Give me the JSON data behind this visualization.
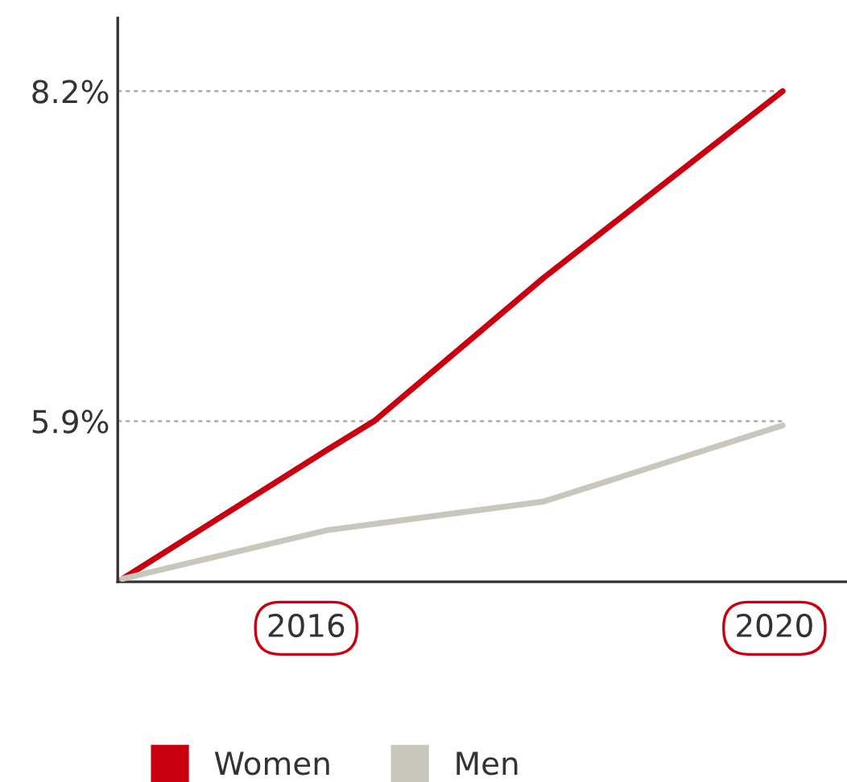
{
  "chart_data": {
    "type": "line",
    "xlim": [
      2014.39,
      2020.62
    ],
    "xticks": [
      2016,
      2020
    ],
    "ylim": [
      4.78,
      8.71
    ],
    "yticks": [
      {
        "value": 5.9,
        "label": "5.9%"
      },
      {
        "value": 8.2,
        "label": "8.2%"
      }
    ],
    "grid": "y",
    "legend": "bottom",
    "marker": "none",
    "line_style": "solid",
    "series": [
      {
        "name": "Women",
        "color": "#c8000f",
        "x": [
          2014.43,
          2016.18,
          2016.58,
          2018.03,
          2020.07
        ],
        "values": [
          4.8,
          5.7,
          5.9,
          6.9,
          8.2
        ]
      },
      {
        "name": "Men",
        "color": "#c9c7bb",
        "x": [
          2014.43,
          2016.18,
          2018.03,
          2020.07
        ],
        "values": [
          4.8,
          5.14,
          5.34,
          5.87
        ]
      }
    ]
  }
}
